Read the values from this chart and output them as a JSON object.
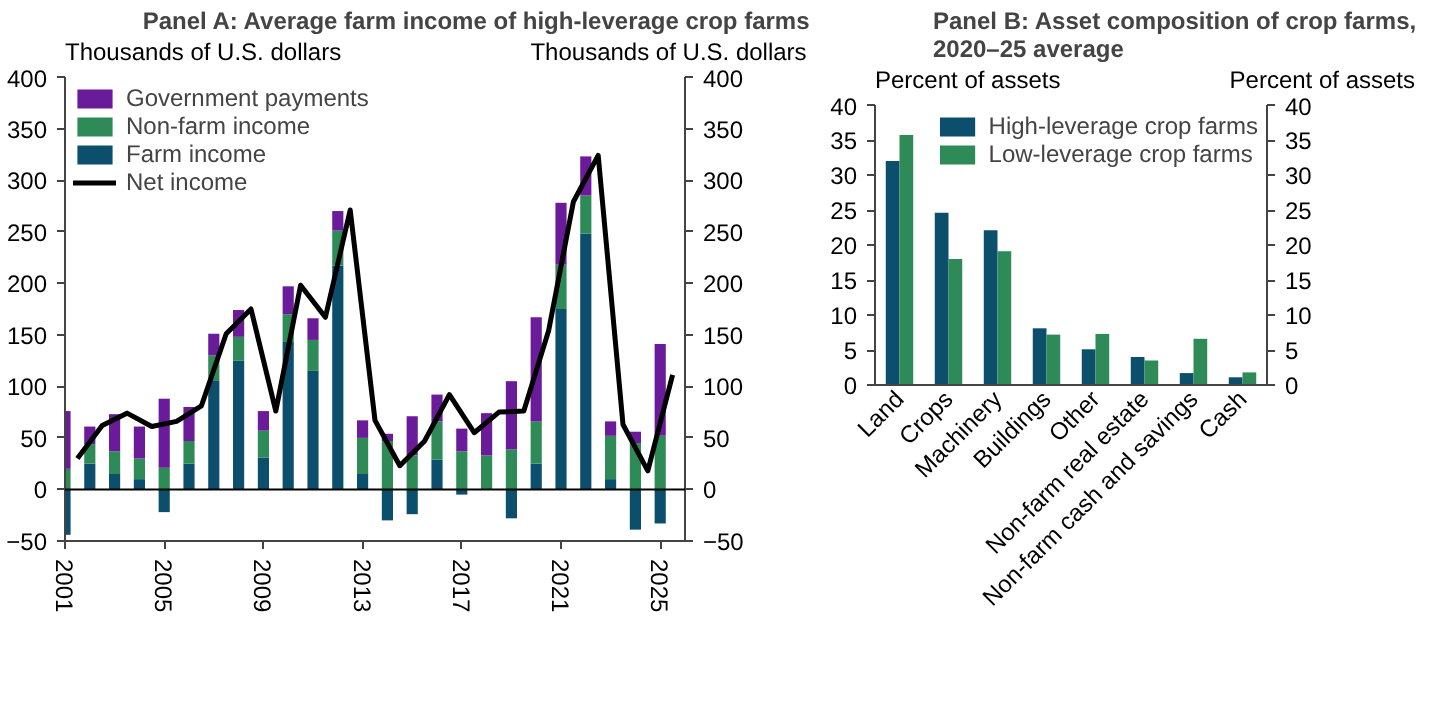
{
  "chart_data": [
    {
      "type": "bar",
      "title": "Panel A: Average farm income of high-leverage crop farms",
      "ylabel": "Thousands of U.S. dollars",
      "y2label": "Thousands of U.S. dollars",
      "x": [
        2001,
        2002,
        2003,
        2004,
        2005,
        2006,
        2007,
        2008,
        2009,
        2010,
        2011,
        2012,
        2013,
        2014,
        2015,
        2016,
        2017,
        2018,
        2019,
        2020,
        2021,
        2022,
        2023,
        2024,
        2025
      ],
      "stacked": true,
      "series": [
        {
          "name": "Farm income",
          "color": "#0b4f6c",
          "values": [
            -44,
            25,
            15,
            10,
            -22,
            25,
            106,
            125,
            31,
            143,
            115,
            217,
            15,
            -30,
            -24,
            29,
            -5,
            0,
            -28,
            25,
            175,
            248,
            10,
            -39,
            -33
          ]
        },
        {
          "name": "Non-farm income",
          "color": "#2e8b57",
          "values": [
            20,
            19,
            22,
            20,
            21,
            22,
            24,
            23,
            26,
            27,
            30,
            34,
            35,
            47,
            33,
            37,
            37,
            33,
            39,
            41,
            43,
            37,
            42,
            45,
            52
          ]
        },
        {
          "name": "Government payments",
          "color": "#6a1b9a",
          "values": [
            56,
            17,
            36,
            31,
            67,
            33,
            21,
            26,
            19,
            27,
            21,
            19,
            17,
            7,
            38,
            26,
            22,
            41,
            66,
            101,
            60,
            38,
            14,
            11,
            89
          ]
        },
        {
          "name": "Net income",
          "type": "line",
          "color": "#000000",
          "x": [
            2001.5,
            2002.5,
            2003.5,
            2004.5,
            2005.5,
            2006.5,
            2007.5,
            2008.5,
            2009.5,
            2010.5,
            2011.5,
            2012.5,
            2013.5,
            2014.5,
            2015.5,
            2016.5,
            2017.5,
            2018.5,
            2019.5,
            2020.5,
            2021.5,
            2022.5,
            2023.5,
            2024.5,
            2025.5
          ],
          "values": [
            30,
            62,
            74,
            61,
            66,
            81,
            151,
            175,
            76,
            198,
            167,
            271,
            67,
            23,
            47,
            92,
            55,
            75,
            76,
            154,
            279,
            324,
            63,
            18,
            111
          ]
        }
      ],
      "xlim": [
        2001,
        2026
      ],
      "xticks": [
        2001,
        2005,
        2009,
        2013,
        2017,
        2021,
        2025
      ],
      "ylim": [
        -50,
        400
      ],
      "yticks": [
        -50,
        0,
        50,
        100,
        150,
        200,
        250,
        300,
        350,
        400
      ],
      "y2lim": [
        -50,
        400
      ],
      "y2ticks": [
        -50,
        0,
        50,
        100,
        150,
        200,
        250,
        300,
        350,
        400
      ],
      "ref_lines": [
        {
          "axis": "y",
          "value": 0,
          "color": "#000000"
        }
      ],
      "legend": "top left"
    },
    {
      "type": "bar",
      "title": "Panel B: Asset composition of crop farms, 2020–25 average",
      "ylabel": "Percent of assets",
      "y2label": "Percent of assets",
      "categories": [
        "Land",
        "Crops",
        "Machinery",
        "Buildings",
        "Other",
        "Non-farm real estate",
        "Non-farm cash and savings",
        "Cash"
      ],
      "series": [
        {
          "name": "High-leverage crop farms",
          "color": "#0b4f6c",
          "values": [
            32,
            24.6,
            22.1,
            8.1,
            5.1,
            4.0,
            1.7,
            1.1
          ]
        },
        {
          "name": "Low-leverage crop farms",
          "color": "#2e8b57",
          "values": [
            35.7,
            18,
            19.1,
            7.2,
            7.3,
            3.5,
            6.6,
            1.8
          ]
        }
      ],
      "ylim": [
        0,
        40
      ],
      "yticks": [
        0,
        5,
        10,
        15,
        20,
        25,
        30,
        35,
        40
      ],
      "y2lim": [
        0,
        40
      ],
      "y2ticks": [
        0,
        5,
        10,
        15,
        20,
        25,
        30,
        35,
        40
      ],
      "legend": "top right"
    }
  ]
}
